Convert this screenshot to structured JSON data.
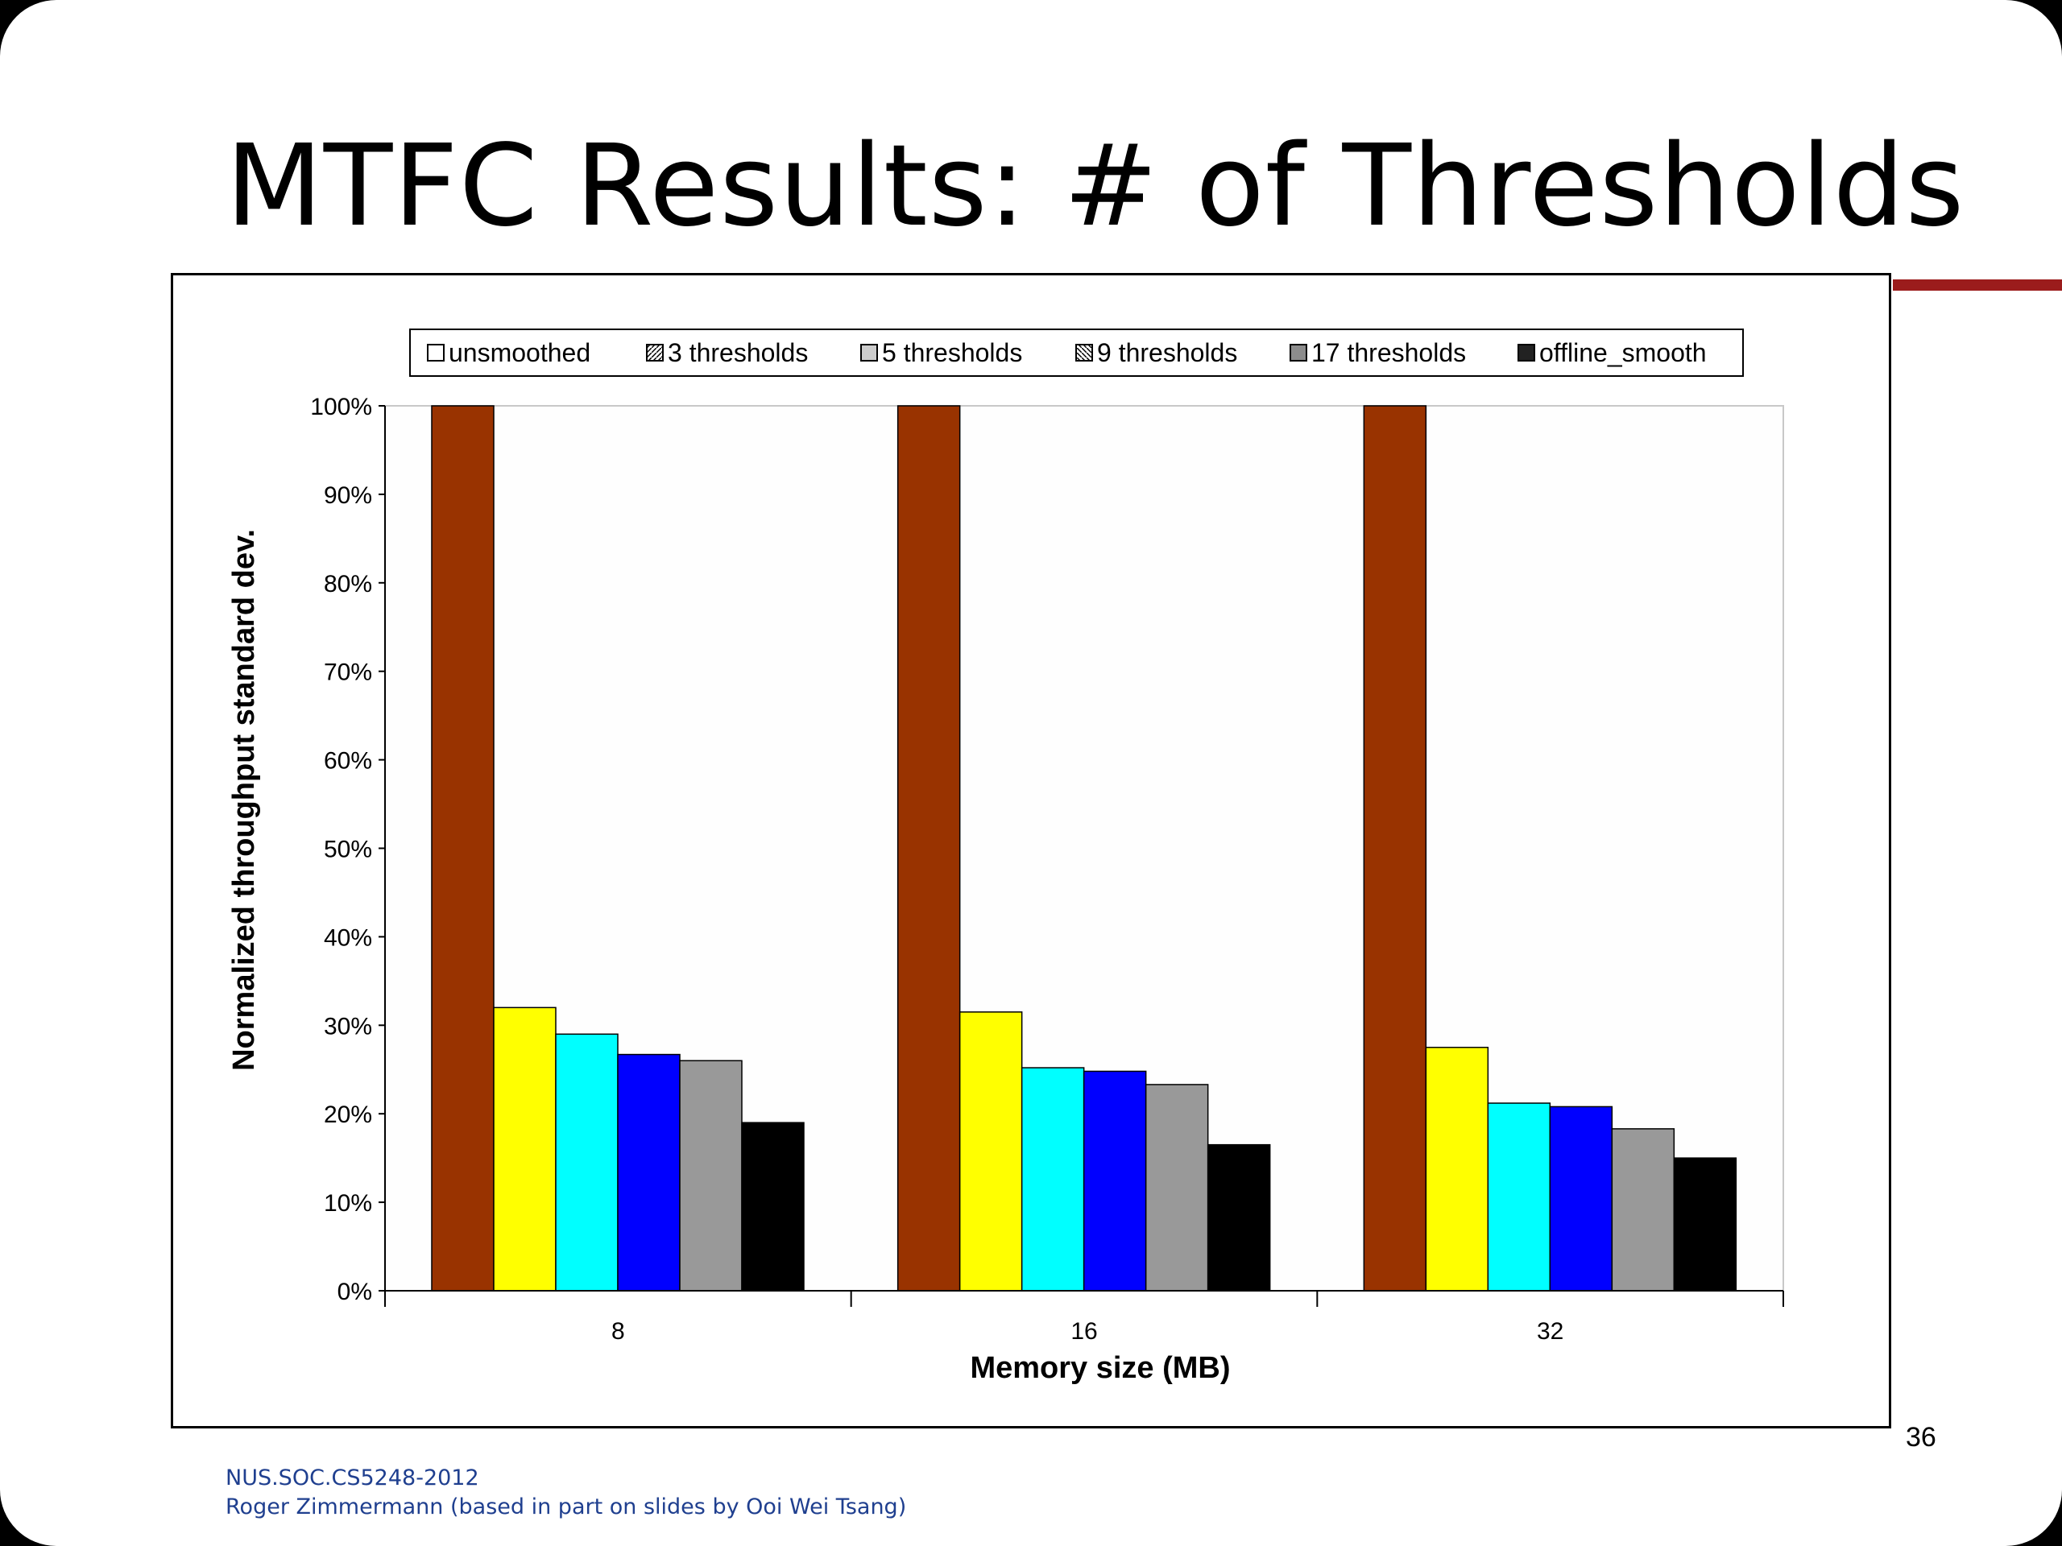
{
  "slide": {
    "title": "MTFC Results: # of Thresholds",
    "page_number": "36",
    "footer_line1": "NUS.SOC.CS5248-2012",
    "footer_line2": "Roger Zimmermann (based in part on slides by Ooi Wei Tsang)",
    "accent_color": "#9b1c1c"
  },
  "chart_data": {
    "type": "bar",
    "title": "",
    "xlabel": "Memory size (MB)",
    "ylabel": "Normalized throughput standard dev.",
    "categories": [
      "8",
      "16",
      "32"
    ],
    "ylim": [
      0,
      1
    ],
    "yticks": [
      0,
      0.1,
      0.2,
      0.3,
      0.4,
      0.5,
      0.6,
      0.7,
      0.8,
      0.9,
      1.0
    ],
    "ytick_labels": [
      "0%",
      "10%",
      "20%",
      "30%",
      "40%",
      "50%",
      "60%",
      "70%",
      "80%",
      "90%",
      "100%"
    ],
    "grid": false,
    "legend_position": "top",
    "series": [
      {
        "name": "unsmoothed",
        "color": "#993300",
        "values": [
          1.0,
          1.0,
          1.0
        ]
      },
      {
        "name": "3 thresholds",
        "color": "#ffff00",
        "values": [
          0.32,
          0.315,
          0.275
        ]
      },
      {
        "name": "5 thresholds",
        "color": "#00ffff",
        "values": [
          0.29,
          0.252,
          0.212
        ]
      },
      {
        "name": "9 thresholds",
        "color": "#0000ff",
        "values": [
          0.267,
          0.248,
          0.208
        ]
      },
      {
        "name": "17 thresholds",
        "color": "#999999",
        "values": [
          0.26,
          0.233,
          0.183
        ]
      },
      {
        "name": "offline_smooth",
        "color": "#000000",
        "values": [
          0.19,
          0.165,
          0.15
        ]
      }
    ],
    "legend_swatches": [
      "blank",
      "diagonal-hatch",
      "light-gray",
      "backslash-hatch",
      "gray",
      "black"
    ]
  }
}
